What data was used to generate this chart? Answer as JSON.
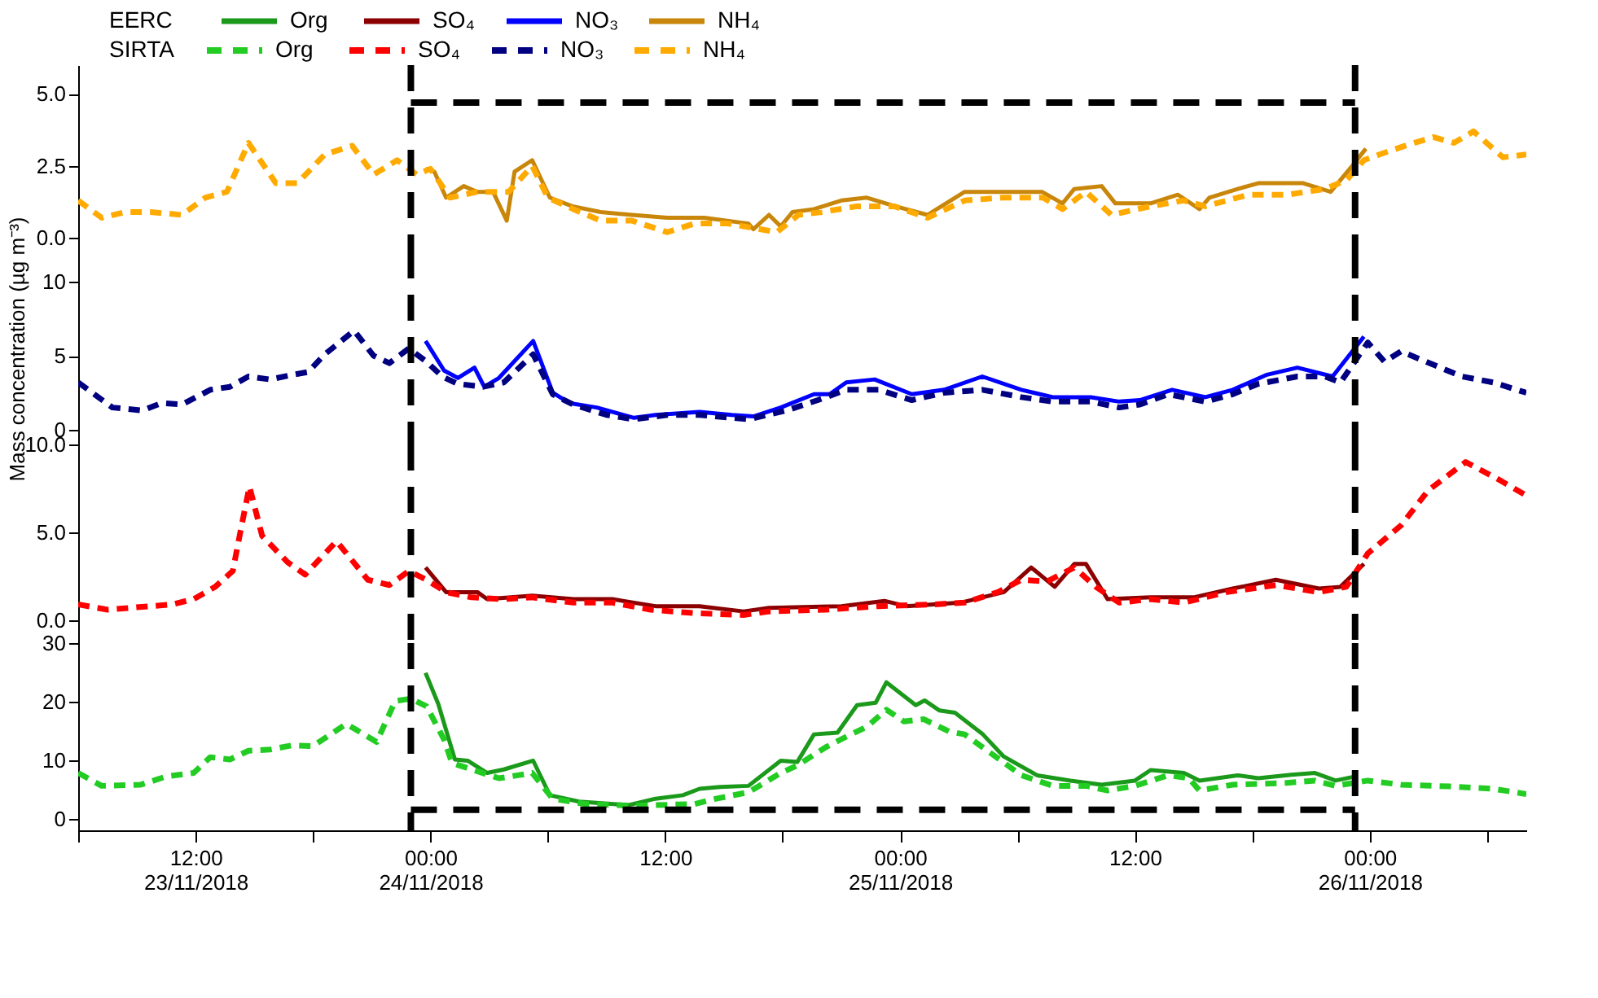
{
  "chart_data": [
    {
      "type": "line",
      "legend": "top",
      "annotations": [
        "EERC",
        "SIRTA"
      ],
      "xlim": [
        "2018-11-23T06:00",
        "2018-11-26T08:00"
      ],
      "ylim": [
        -0.5,
        6
      ],
      "yticks": [
        {
          "value": 0,
          "label": "0.0"
        },
        {
          "value": 2.5,
          "label": "2.5"
        },
        {
          "value": 5,
          "label": "5.0"
        }
      ],
      "tick_labels": "y",
      "ref_lines": [
        {
          "axis": "x",
          "value": "2018-11-23T23:00",
          "color": "#000000",
          "line_style": "dashed"
        },
        {
          "axis": "x",
          "value": "2018-11-25T23:15",
          "color": "#000000",
          "line_style": "dashed"
        },
        {
          "axis": "y",
          "value": 4.7,
          "color": "#000000",
          "line_style": "dashed"
        }
      ],
      "series": [
        {
          "name": "NH₄",
          "color": "#c8860a",
          "line_style": "solid",
          "x": [
            "2018-11-23T23:45",
            "2018-11-24T00:12",
            "2018-11-24T00:48",
            "2018-11-24T01:42",
            "2018-11-24T02:24",
            "2018-11-24T03:12",
            "2018-11-24T03:54",
            "2018-11-24T04:18",
            "2018-11-24T05:12",
            "2018-11-24T06:06",
            "2018-11-24T07:15",
            "2018-11-24T08:42",
            "2018-11-24T10:18",
            "2018-11-24T12:06",
            "2018-11-24T14:00",
            "2018-11-24T16:15",
            "2018-11-24T16:30",
            "2018-11-24T17:18",
            "2018-11-24T17:54",
            "2018-11-24T18:30",
            "2018-11-24T19:36",
            "2018-11-24T21:00",
            "2018-11-24T22:18",
            "2018-11-24T23:45",
            "2018-11-25T01:24",
            "2018-11-25T03:18",
            "2018-11-25T05:18",
            "2018-11-25T07:15",
            "2018-11-25T08:18",
            "2018-11-25T08:54",
            "2018-11-25T10:18",
            "2018-11-25T11:00",
            "2018-11-25T12:48",
            "2018-11-25T14:12",
            "2018-11-25T15:18",
            "2018-11-25T15:48",
            "2018-11-25T17:15",
            "2018-11-25T18:18",
            "2018-11-25T19:30",
            "2018-11-25T20:36",
            "2018-11-25T22:00",
            "2018-11-25T23:06",
            "2018-11-25T23:48"
          ],
          "values": [
            2.4,
            2.3,
            1.4,
            1.8,
            1.6,
            1.6,
            0.6,
            2.3,
            2.7,
            1.4,
            1.1,
            0.9,
            0.8,
            0.7,
            0.7,
            0.5,
            0.3,
            0.8,
            0.4,
            0.9,
            1.0,
            1.3,
            1.4,
            1.1,
            0.8,
            1.6,
            1.6,
            1.6,
            1.2,
            1.7,
            1.8,
            1.2,
            1.2,
            1.5,
            1.0,
            1.4,
            1.7,
            1.9,
            1.9,
            1.9,
            1.6,
            2.5,
            3.1
          ]
        },
        {
          "name": "NH₄",
          "color": "#ffaa00",
          "line_style": "dashed",
          "x": [
            "2018-11-23T06:00",
            "2018-11-23T07:12",
            "2018-11-23T08:24",
            "2018-11-23T09:42",
            "2018-11-23T11:18",
            "2018-11-23T12:30",
            "2018-11-23T13:36",
            "2018-11-23T14:42",
            "2018-11-23T16:06",
            "2018-11-23T17:12",
            "2018-11-23T18:36",
            "2018-11-23T20:00",
            "2018-11-23T21:06",
            "2018-11-23T22:18",
            "2018-11-23T23:18",
            "2018-11-24T00:00",
            "2018-11-24T01:00",
            "2018-11-24T02:24",
            "2018-11-24T04:00",
            "2018-11-24T05:12",
            "2018-11-24T06:00",
            "2018-11-24T07:18",
            "2018-11-24T08:42",
            "2018-11-24T10:18",
            "2018-11-24T12:06",
            "2018-11-24T13:30",
            "2018-11-24T15:12",
            "2018-11-24T17:42",
            "2018-11-24T18:48",
            "2018-11-24T20:00",
            "2018-11-24T21:48",
            "2018-11-24T23:42",
            "2018-11-25T01:24",
            "2018-11-25T03:18",
            "2018-11-25T05:18",
            "2018-11-25T07:18",
            "2018-11-25T08:18",
            "2018-11-25T09:30",
            "2018-11-25T10:48",
            "2018-11-25T12:48",
            "2018-11-25T14:30",
            "2018-11-25T15:36",
            "2018-11-25T17:48",
            "2018-11-25T19:48",
            "2018-11-25T21:42",
            "2018-11-25T22:48",
            "2018-11-25T23:42",
            "2018-11-26T00:30",
            "2018-11-26T01:48",
            "2018-11-26T03:15",
            "2018-11-26T04:18",
            "2018-11-26T05:18",
            "2018-11-26T06:48",
            "2018-11-26T08:00"
          ],
          "values": [
            1.3,
            0.7,
            0.9,
            0.9,
            0.8,
            1.4,
            1.6,
            3.3,
            1.9,
            1.9,
            2.9,
            3.2,
            2.2,
            2.7,
            2.2,
            2.4,
            1.4,
            1.6,
            1.6,
            2.5,
            1.4,
            1.0,
            0.6,
            0.6,
            0.2,
            0.5,
            0.5,
            0.2,
            0.8,
            0.9,
            1.1,
            1.1,
            0.7,
            1.3,
            1.4,
            1.4,
            1.0,
            1.6,
            0.8,
            1.1,
            1.3,
            1.1,
            1.5,
            1.5,
            1.7,
            2.0,
            2.7,
            2.9,
            3.2,
            3.5,
            3.3,
            3.7,
            2.8,
            2.9
          ]
        }
      ]
    },
    {
      "type": "line",
      "ylabel": "Mass concentration (µg m⁻³)",
      "xlim": [
        "2018-11-23T06:00",
        "2018-11-26T08:00"
      ],
      "ylim": [
        -1,
        12
      ],
      "yticks": [
        0,
        5,
        10
      ],
      "tick_labels": "y",
      "ref_lines": [
        {
          "axis": "x",
          "value": "2018-11-23T23:00",
          "color": "#000000",
          "line_style": "dashed"
        },
        {
          "axis": "x",
          "value": "2018-11-25T23:15",
          "color": "#000000",
          "line_style": "dashed"
        }
      ],
      "series": [
        {
          "name": "NO₃",
          "color": "#0000ff",
          "line_style": "solid",
          "x": [
            "2018-11-23T23:45",
            "2018-11-24T00:42",
            "2018-11-24T01:24",
            "2018-11-24T02:15",
            "2018-11-24T02:45",
            "2018-11-24T03:30",
            "2018-11-24T05:15",
            "2018-11-24T06:15",
            "2018-11-24T07:06",
            "2018-11-24T08:30",
            "2018-11-24T10:24",
            "2018-11-24T11:30",
            "2018-11-24T13:45",
            "2018-11-24T15:24",
            "2018-11-24T16:30",
            "2018-11-24T17:54",
            "2018-11-24T19:36",
            "2018-11-24T20:24",
            "2018-11-24T21:15",
            "2018-11-24T22:42",
            "2018-11-25T00:36",
            "2018-11-25T02:15",
            "2018-11-25T04:12",
            "2018-11-25T06:12",
            "2018-11-25T07:48",
            "2018-11-25T09:45",
            "2018-11-25T11:12",
            "2018-11-25T12:15",
            "2018-11-25T13:54",
            "2018-11-25T15:36",
            "2018-11-25T17:00",
            "2018-11-25T18:42",
            "2018-11-25T20:18",
            "2018-11-25T22:06",
            "2018-11-25T23:42"
          ],
          "values": [
            6.0,
            4.0,
            3.5,
            4.2,
            2.9,
            3.5,
            6.0,
            2.5,
            1.8,
            1.5,
            0.8,
            1.0,
            1.2,
            1.0,
            0.9,
            1.5,
            2.4,
            2.4,
            3.2,
            3.4,
            2.4,
            2.7,
            3.6,
            2.7,
            2.2,
            2.2,
            1.9,
            2.0,
            2.7,
            2.2,
            2.7,
            3.7,
            4.2,
            3.6,
            6.3
          ]
        },
        {
          "name": "NO₃",
          "color": "#000080",
          "line_style": "dashed",
          "x": [
            "2018-11-23T06:00",
            "2018-11-23T07:45",
            "2018-11-23T09:18",
            "2018-11-23T10:15",
            "2018-11-23T11:18",
            "2018-11-23T12:45",
            "2018-11-23T13:45",
            "2018-11-23T14:42",
            "2018-11-23T15:48",
            "2018-11-23T16:54",
            "2018-11-23T17:45",
            "2018-11-23T18:36",
            "2018-11-23T20:06",
            "2018-11-23T21:06",
            "2018-11-23T21:54",
            "2018-11-23T22:54",
            "2018-11-23T23:48",
            "2018-11-24T00:36",
            "2018-11-24T01:24",
            "2018-11-24T02:42",
            "2018-11-24T03:45",
            "2018-11-24T05:15",
            "2018-11-24T06:15",
            "2018-11-24T07:18",
            "2018-11-24T09:00",
            "2018-11-24T10:24",
            "2018-11-24T12:06",
            "2018-11-24T13:45",
            "2018-11-24T16:15",
            "2018-11-24T18:12",
            "2018-11-24T19:48",
            "2018-11-24T21:15",
            "2018-11-24T22:54",
            "2018-11-25T00:36",
            "2018-11-25T02:15",
            "2018-11-25T04:12",
            "2018-11-25T06:12",
            "2018-11-25T07:48",
            "2018-11-25T09:45",
            "2018-11-25T11:12",
            "2018-11-25T12:15",
            "2018-11-25T13:42",
            "2018-11-25T15:36",
            "2018-11-25T17:00",
            "2018-11-25T18:18",
            "2018-11-25T20:18",
            "2018-11-25T21:42",
            "2018-11-25T22:30",
            "2018-11-25T23:54",
            "2018-11-26T00:45",
            "2018-11-26T01:36",
            "2018-11-26T04:42",
            "2018-11-26T06:18",
            "2018-11-26T08:00"
          ],
          "values": [
            3.2,
            1.5,
            1.3,
            1.8,
            1.7,
            2.7,
            2.9,
            3.6,
            3.4,
            3.7,
            3.9,
            5.1,
            6.7,
            5.0,
            4.5,
            5.5,
            4.6,
            3.6,
            3.1,
            2.9,
            3.2,
            5.1,
            2.4,
            1.7,
            1.0,
            0.7,
            1.0,
            1.0,
            0.7,
            1.3,
            2.0,
            2.7,
            2.7,
            2.0,
            2.5,
            2.7,
            2.2,
            1.9,
            1.9,
            1.5,
            1.7,
            2.4,
            1.9,
            2.4,
            3.1,
            3.6,
            3.6,
            3.2,
            5.9,
            4.6,
            5.3,
            3.6,
            3.2,
            2.5
          ]
        }
      ]
    },
    {
      "type": "line",
      "xlim": [
        "2018-11-23T06:00",
        "2018-11-26T08:00"
      ],
      "ylim": [
        -1.3,
        10
      ],
      "yticks": [
        {
          "value": 0,
          "label": "0.0"
        },
        {
          "value": 5,
          "label": "5.0"
        },
        {
          "value": 10,
          "label": "10.0"
        }
      ],
      "tick_labels": "y",
      "ref_lines": [
        {
          "axis": "x",
          "value": "2018-11-23T23:00",
          "color": "#000000",
          "line_style": "dashed"
        },
        {
          "axis": "x",
          "value": "2018-11-25T23:15",
          "color": "#000000",
          "line_style": "dashed"
        }
      ],
      "series": [
        {
          "name": "SO₄",
          "color": "#8b0000",
          "line_style": "solid",
          "x": [
            "2018-11-23T23:45",
            "2018-11-24T00:48",
            "2018-11-24T02:24",
            "2018-11-24T02:54",
            "2018-11-24T05:12",
            "2018-11-24T07:18",
            "2018-11-24T09:18",
            "2018-11-24T11:30",
            "2018-11-24T13:45",
            "2018-11-24T16:00",
            "2018-11-24T17:18",
            "2018-11-24T21:00",
            "2018-11-24T23:12",
            "2018-11-25T00:18",
            "2018-11-25T03:06",
            "2018-11-25T05:18",
            "2018-11-25T06:42",
            "2018-11-25T07:54",
            "2018-11-25T08:54",
            "2018-11-25T09:30",
            "2018-11-25T10:36",
            "2018-11-25T12:48",
            "2018-11-25T15:00",
            "2018-11-25T17:00",
            "2018-11-25T19:12",
            "2018-11-25T21:24",
            "2018-11-25T22:30",
            "2018-11-25T23:42"
          ],
          "values": [
            3.0,
            1.6,
            1.6,
            1.2,
            1.4,
            1.2,
            1.2,
            0.8,
            0.8,
            0.5,
            0.7,
            0.8,
            1.1,
            0.8,
            1.0,
            1.6,
            3.0,
            1.9,
            3.2,
            3.2,
            1.2,
            1.3,
            1.3,
            1.8,
            2.3,
            1.8,
            1.9,
            3.2
          ]
        },
        {
          "name": "SO₄",
          "color": "#ff0000",
          "line_style": "dashed",
          "x": [
            "2018-11-23T06:00",
            "2018-11-23T07:30",
            "2018-11-23T09:42",
            "2018-11-23T10:48",
            "2018-11-23T11:54",
            "2018-11-23T13:00",
            "2018-11-23T13:54",
            "2018-11-23T14:18",
            "2018-11-23T14:45",
            "2018-11-23T15:24",
            "2018-11-23T16:42",
            "2018-11-23T17:36",
            "2018-11-23T19:12",
            "2018-11-23T20:48",
            "2018-11-23T21:54",
            "2018-11-23T22:54",
            "2018-11-23T23:48",
            "2018-11-24T00:48",
            "2018-11-24T02:06",
            "2018-11-24T03:45",
            "2018-11-24T05:12",
            "2018-11-24T07:18",
            "2018-11-24T09:18",
            "2018-11-24T11:15",
            "2018-11-24T13:30",
            "2018-11-24T16:00",
            "2018-11-24T17:18",
            "2018-11-24T20:12",
            "2018-11-24T22:54",
            "2018-11-25T01:42",
            "2018-11-25T03:18",
            "2018-11-25T05:00",
            "2018-11-25T06:12",
            "2018-11-25T07:30",
            "2018-11-25T08:54",
            "2018-11-25T10:00",
            "2018-11-25T11:12",
            "2018-11-25T12:48",
            "2018-11-25T14:30",
            "2018-11-25T16:42",
            "2018-11-25T19:12",
            "2018-11-25T21:24",
            "2018-11-25T22:48",
            "2018-11-25T23:54",
            "2018-11-26T01:36",
            "2018-11-26T03:00",
            "2018-11-26T04:54",
            "2018-11-26T06:36",
            "2018-11-26T08:00"
          ],
          "values": [
            0.9,
            0.6,
            0.8,
            0.9,
            1.2,
            1.9,
            2.8,
            5.1,
            7.6,
            4.8,
            3.3,
            2.6,
            4.5,
            2.3,
            2.0,
            2.8,
            2.3,
            1.6,
            1.3,
            1.2,
            1.3,
            1.0,
            1.0,
            0.6,
            0.4,
            0.3,
            0.5,
            0.6,
            0.8,
            0.9,
            1.0,
            1.6,
            2.3,
            2.2,
            3.0,
            1.9,
            1.0,
            1.2,
            1.0,
            1.6,
            2.0,
            1.6,
            1.9,
            3.8,
            5.4,
            7.4,
            9.0,
            8.0,
            7.1
          ]
        }
      ]
    },
    {
      "type": "line",
      "xlim": [
        "2018-11-23T06:00",
        "2018-11-26T08:00"
      ],
      "xticks": [
        {
          "value": "2018-11-23T06:00",
          "label": null
        },
        {
          "value": "2018-11-23T12:00",
          "label": "12:00\n23/11/2018"
        },
        {
          "value": "2018-11-23T18:00",
          "label": null
        },
        {
          "value": "2018-11-24T00:00",
          "label": "00:00\n24/11/2018"
        },
        {
          "value": "2018-11-24T06:00",
          "label": null
        },
        {
          "value": "2018-11-24T12:00",
          "label": "12:00"
        },
        {
          "value": "2018-11-24T18:00",
          "label": null
        },
        {
          "value": "2018-11-25T00:00",
          "label": "00:00\n25/11/2018"
        },
        {
          "value": "2018-11-25T06:00",
          "label": null
        },
        {
          "value": "2018-11-25T12:00",
          "label": "12:00"
        },
        {
          "value": "2018-11-25T18:00",
          "label": null
        },
        {
          "value": "2018-11-26T00:00",
          "label": "00:00\n26/11/2018"
        },
        {
          "value": "2018-11-26T06:00",
          "label": null
        }
      ],
      "ylim": [
        -2,
        30
      ],
      "yticks": [
        0,
        10,
        20,
        30
      ],
      "ref_lines": [
        {
          "axis": "x",
          "value": "2018-11-23T23:00",
          "color": "#000000",
          "line_style": "dashed"
        },
        {
          "axis": "x",
          "value": "2018-11-25T23:15",
          "color": "#000000",
          "line_style": "dashed"
        },
        {
          "axis": "y",
          "value": 1.5,
          "color": "#000000",
          "line_style": "dashed"
        }
      ],
      "series": [
        {
          "name": "Org",
          "color": "#1a991a",
          "line_style": "solid",
          "x": [
            "2018-11-23T23:45",
            "2018-11-24T00:24",
            "2018-11-24T01:15",
            "2018-11-24T01:54",
            "2018-11-24T02:54",
            "2018-11-24T03:45",
            "2018-11-24T05:15",
            "2018-11-24T06:06",
            "2018-11-24T07:36",
            "2018-11-24T10:06",
            "2018-11-24T11:30",
            "2018-11-24T12:54",
            "2018-11-24T13:45",
            "2018-11-24T14:48",
            "2018-11-24T16:15",
            "2018-11-24T17:54",
            "2018-11-24T18:45",
            "2018-11-24T19:36",
            "2018-11-24T20:48",
            "2018-11-24T21:48",
            "2018-11-24T22:45",
            "2018-11-24T23:18",
            "2018-11-25T00:48",
            "2018-11-25T01:15",
            "2018-11-25T02:00",
            "2018-11-25T02:48",
            "2018-11-25T04:12",
            "2018-11-25T05:18",
            "2018-11-25T07:00",
            "2018-11-25T08:42",
            "2018-11-25T10:18",
            "2018-11-25T12:00",
            "2018-11-25T12:48",
            "2018-11-25T14:30",
            "2018-11-25T15:18",
            "2018-11-25T17:15",
            "2018-11-25T18:18",
            "2018-11-25T20:00",
            "2018-11-25T21:12",
            "2018-11-25T22:15",
            "2018-11-25T23:15"
          ],
          "values": [
            24.9,
            19.6,
            10.1,
            9.9,
            7.8,
            8.4,
            9.9,
            4.0,
            2.9,
            2.3,
            3.4,
            4.0,
            5.1,
            5.4,
            5.6,
            9.9,
            9.7,
            14.4,
            14.7,
            19.4,
            19.8,
            23.3,
            19.4,
            20.2,
            18.5,
            18.1,
            14.5,
            10.6,
            7.4,
            6.5,
            5.8,
            6.5,
            8.3,
            7.8,
            6.5,
            7.4,
            6.9,
            7.5,
            7.8,
            6.5,
            7.2
          ]
        },
        {
          "name": "Org",
          "color": "#22cc22",
          "line_style": "dashed",
          "x": [
            "2018-11-23T06:00",
            "2018-11-23T07:12",
            "2018-11-23T09:12",
            "2018-11-23T10:30",
            "2018-11-23T11:54",
            "2018-11-23T12:45",
            "2018-11-23T13:45",
            "2018-11-23T14:42",
            "2018-11-23T15:48",
            "2018-11-23T16:54",
            "2018-11-23T18:00",
            "2018-11-23T19:42",
            "2018-11-23T21:15",
            "2018-11-23T22:12",
            "2018-11-23T23:00",
            "2018-11-23T23:48",
            "2018-11-24T00:42",
            "2018-11-24T01:06",
            "2018-11-24T02:18",
            "2018-11-24T03:30",
            "2018-11-24T05:12",
            "2018-11-24T06:15",
            "2018-11-24T07:54",
            "2018-11-24T10:24",
            "2018-11-24T13:30",
            "2018-11-24T14:36",
            "2018-11-24T16:15",
            "2018-11-24T17:54",
            "2018-11-24T18:45",
            "2018-11-24T20:12",
            "2018-11-24T21:15",
            "2018-11-24T22:18",
            "2018-11-24T23:18",
            "2018-11-25T00:12",
            "2018-11-25T01:12",
            "2018-11-25T02:30",
            "2018-11-25T03:18",
            "2018-11-25T04:45",
            "2018-11-25T06:12",
            "2018-11-25T07:48",
            "2018-11-25T09:30",
            "2018-11-25T10:36",
            "2018-11-25T12:00",
            "2018-11-25T13:42",
            "2018-11-25T14:45",
            "2018-11-25T15:18",
            "2018-11-25T17:00",
            "2018-11-25T19:45",
            "2018-11-25T21:12",
            "2018-11-25T22:15",
            "2018-11-25T23:54",
            "2018-11-26T01:36",
            "2018-11-26T04:06",
            "2018-11-26T06:18",
            "2018-11-26T08:00"
          ],
          "values": [
            7.8,
            5.6,
            5.8,
            7.2,
            7.8,
            10.5,
            10.1,
            11.6,
            11.8,
            12.5,
            12.4,
            16.2,
            13.1,
            20.1,
            20.5,
            19.2,
            13.5,
            9.5,
            8.2,
            6.9,
            7.8,
            3.4,
            2.5,
            2.2,
            2.5,
            3.4,
            4.5,
            7.8,
            9.1,
            12.2,
            14.0,
            15.7,
            18.6,
            16.6,
            17.0,
            14.9,
            14.4,
            10.9,
            7.4,
            5.6,
            5.6,
            4.8,
            5.6,
            7.4,
            6.9,
            4.8,
            5.8,
            6.1,
            6.5,
            5.6,
            6.5,
            5.8,
            5.5,
            5.1,
            4.2
          ]
        }
      ]
    }
  ]
}
